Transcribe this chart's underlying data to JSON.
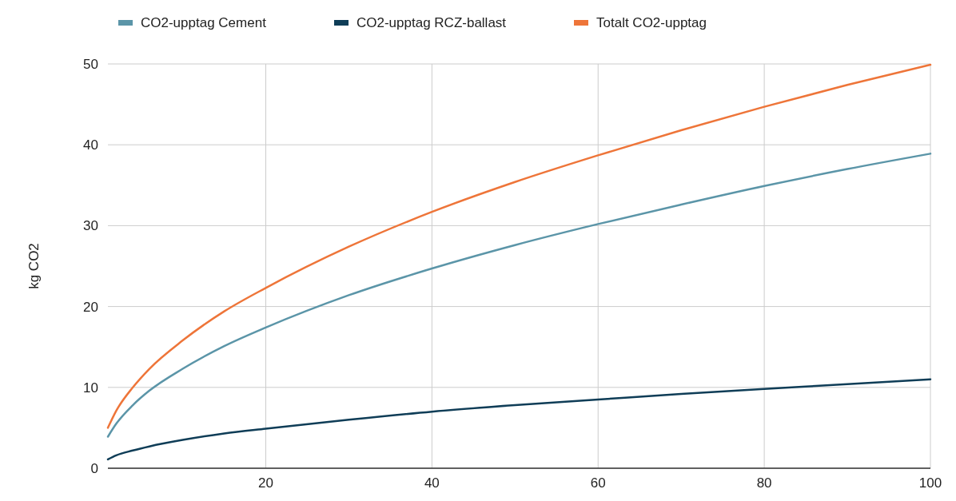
{
  "chart_data": {
    "type": "line",
    "ylabel": "kg CO2",
    "x": [
      1,
      2,
      4,
      6,
      10,
      15,
      20,
      30,
      40,
      50,
      60,
      70,
      80,
      90,
      100
    ],
    "xlim": [
      1,
      100
    ],
    "xticks": [
      20,
      40,
      60,
      80,
      100
    ],
    "ylim": [
      0,
      50
    ],
    "yticks": [
      0,
      10,
      20,
      30,
      40,
      50
    ],
    "grid": true,
    "legend": "top",
    "series": [
      {
        "name": "CO2-upptag Cement",
        "color": "#5b95a8",
        "values": [
          3.9,
          5.5,
          7.8,
          9.6,
          12.3,
          15.1,
          17.4,
          21.4,
          24.7,
          27.6,
          30.2,
          32.6,
          34.9,
          37.0,
          38.9
        ]
      },
      {
        "name": "CO2-upptag RCZ-ballast",
        "color": "#0f3d57",
        "values": [
          1.1,
          1.6,
          2.2,
          2.7,
          3.5,
          4.3,
          4.9,
          6.0,
          7.0,
          7.8,
          8.5,
          9.2,
          9.8,
          10.4,
          11.0
        ]
      },
      {
        "name": "Totalt CO2-upptag",
        "color": "#ee7539",
        "values": [
          5.0,
          7.1,
          10.0,
          12.3,
          15.8,
          19.4,
          22.3,
          27.4,
          31.7,
          35.4,
          38.7,
          41.8,
          44.7,
          47.4,
          49.9
        ]
      }
    ]
  }
}
